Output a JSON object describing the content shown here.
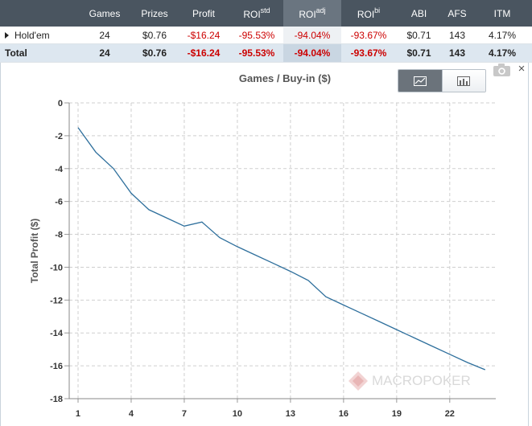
{
  "table": {
    "headers": [
      {
        "key": "name",
        "label": "",
        "sup": ""
      },
      {
        "key": "games",
        "label": "Games",
        "sup": ""
      },
      {
        "key": "prizes",
        "label": "Prizes",
        "sup": ""
      },
      {
        "key": "profit",
        "label": "Profit",
        "sup": ""
      },
      {
        "key": "roi_std",
        "label": "ROI",
        "sup": "std"
      },
      {
        "key": "roi_adj",
        "label": "ROI",
        "sup": "adj"
      },
      {
        "key": "roi_bi",
        "label": "ROI",
        "sup": "bi"
      },
      {
        "key": "abi",
        "label": "ABI",
        "sup": ""
      },
      {
        "key": "afs",
        "label": "AFS",
        "sup": ""
      },
      {
        "key": "itm",
        "label": "ITM",
        "sup": ""
      }
    ],
    "rows": [
      {
        "name": "Hold'em",
        "games": "24",
        "prizes": "$0.76",
        "profit": "-$16.24",
        "roi_std": "-95.53%",
        "roi_adj": "-94.04%",
        "roi_bi": "-93.67%",
        "abi": "$0.71",
        "afs": "143",
        "itm": "4.17%"
      }
    ],
    "total": {
      "name": "Total",
      "games": "24",
      "prizes": "$0.76",
      "profit": "-$16.24",
      "roi_std": "-95.53%",
      "roi_adj": "-94.04%",
      "roi_bi": "-93.67%",
      "abi": "$0.71",
      "afs": "143",
      "itm": "4.17%"
    }
  },
  "chart_controls": {
    "line_view_icon": "line-chart-icon",
    "bar_view_icon": "bar-chart-icon",
    "active_view": "line",
    "camera_icon": "camera-icon",
    "close_label": "×"
  },
  "watermark": {
    "text": "MACROPOKER",
    "logo_icon": "diamond-logo-icon"
  },
  "colors": {
    "line": "#2e6f9c",
    "negative": "#cc0000",
    "header_bg": "#4a5560",
    "total_row_bg": "#dde7f0"
  },
  "chart_data": {
    "type": "line",
    "title": "Games / Buy-in ($)",
    "xlabel": "",
    "ylabel": "Total Profit ($)",
    "xlim": [
      0.5,
      24.6
    ],
    "ylim": [
      -18,
      0
    ],
    "x_ticks": [
      1,
      4,
      7,
      10,
      13,
      16,
      19,
      22
    ],
    "y_ticks": [
      0,
      -2,
      -4,
      -6,
      -8,
      -10,
      -12,
      -14,
      -16,
      -18
    ],
    "grid": true,
    "series": [
      {
        "x": [
          1,
          2,
          3,
          4,
          5,
          6,
          7,
          8,
          9,
          10,
          11,
          12,
          13,
          14,
          15,
          16,
          17,
          18,
          19,
          20,
          21,
          22,
          23,
          24
        ],
        "values": [
          -1.5,
          -3.0,
          -4.0,
          -5.5,
          -6.5,
          -7.0,
          -7.5,
          -7.25,
          -8.2,
          -8.75,
          -9.25,
          -9.75,
          -10.25,
          -10.8,
          -11.8,
          -12.3,
          -12.8,
          -13.3,
          -13.8,
          -14.3,
          -14.8,
          -15.3,
          -15.8,
          -16.24
        ]
      }
    ]
  }
}
